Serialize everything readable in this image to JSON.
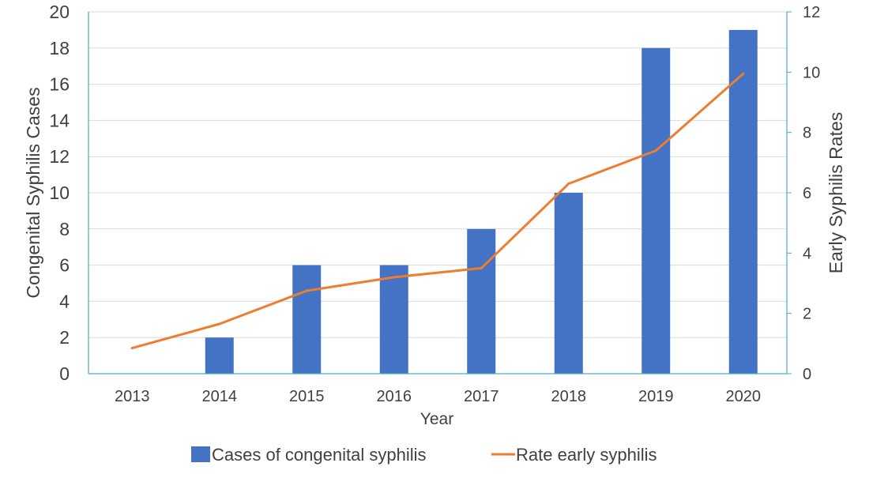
{
  "chart_data": {
    "type": "bar",
    "categories": [
      "2013",
      "2014",
      "2015",
      "2016",
      "2017",
      "2018",
      "2019",
      "2020"
    ],
    "series": [
      {
        "name": "Cases of congenital syphilis",
        "type": "bar",
        "axis": "left",
        "color": "#4472C4",
        "values": [
          0,
          2,
          6,
          6,
          8,
          10,
          18,
          19
        ]
      },
      {
        "name": "Rate early syphilis",
        "type": "line",
        "axis": "right",
        "color": "#ED7D31",
        "values": [
          0.85,
          1.65,
          2.75,
          3.2,
          3.5,
          6.3,
          7.4,
          9.95
        ]
      }
    ],
    "xlabel": "Year",
    "ylabel": "Congenital Syphilis Cases",
    "y2label": "Early Syphilis Rates",
    "ylim": [
      0,
      20
    ],
    "y2lim": [
      0,
      12
    ],
    "yticks": [
      "0",
      "2",
      "4",
      "6",
      "8",
      "10",
      "12",
      "14",
      "16",
      "18",
      "20"
    ],
    "y2ticks": [
      "0",
      "2",
      "4",
      "6",
      "8",
      "10",
      "12"
    ],
    "grid": true,
    "legend_position": "bottom",
    "axis_color": "#4BACC6",
    "grid_color": "#D9D9D9"
  }
}
